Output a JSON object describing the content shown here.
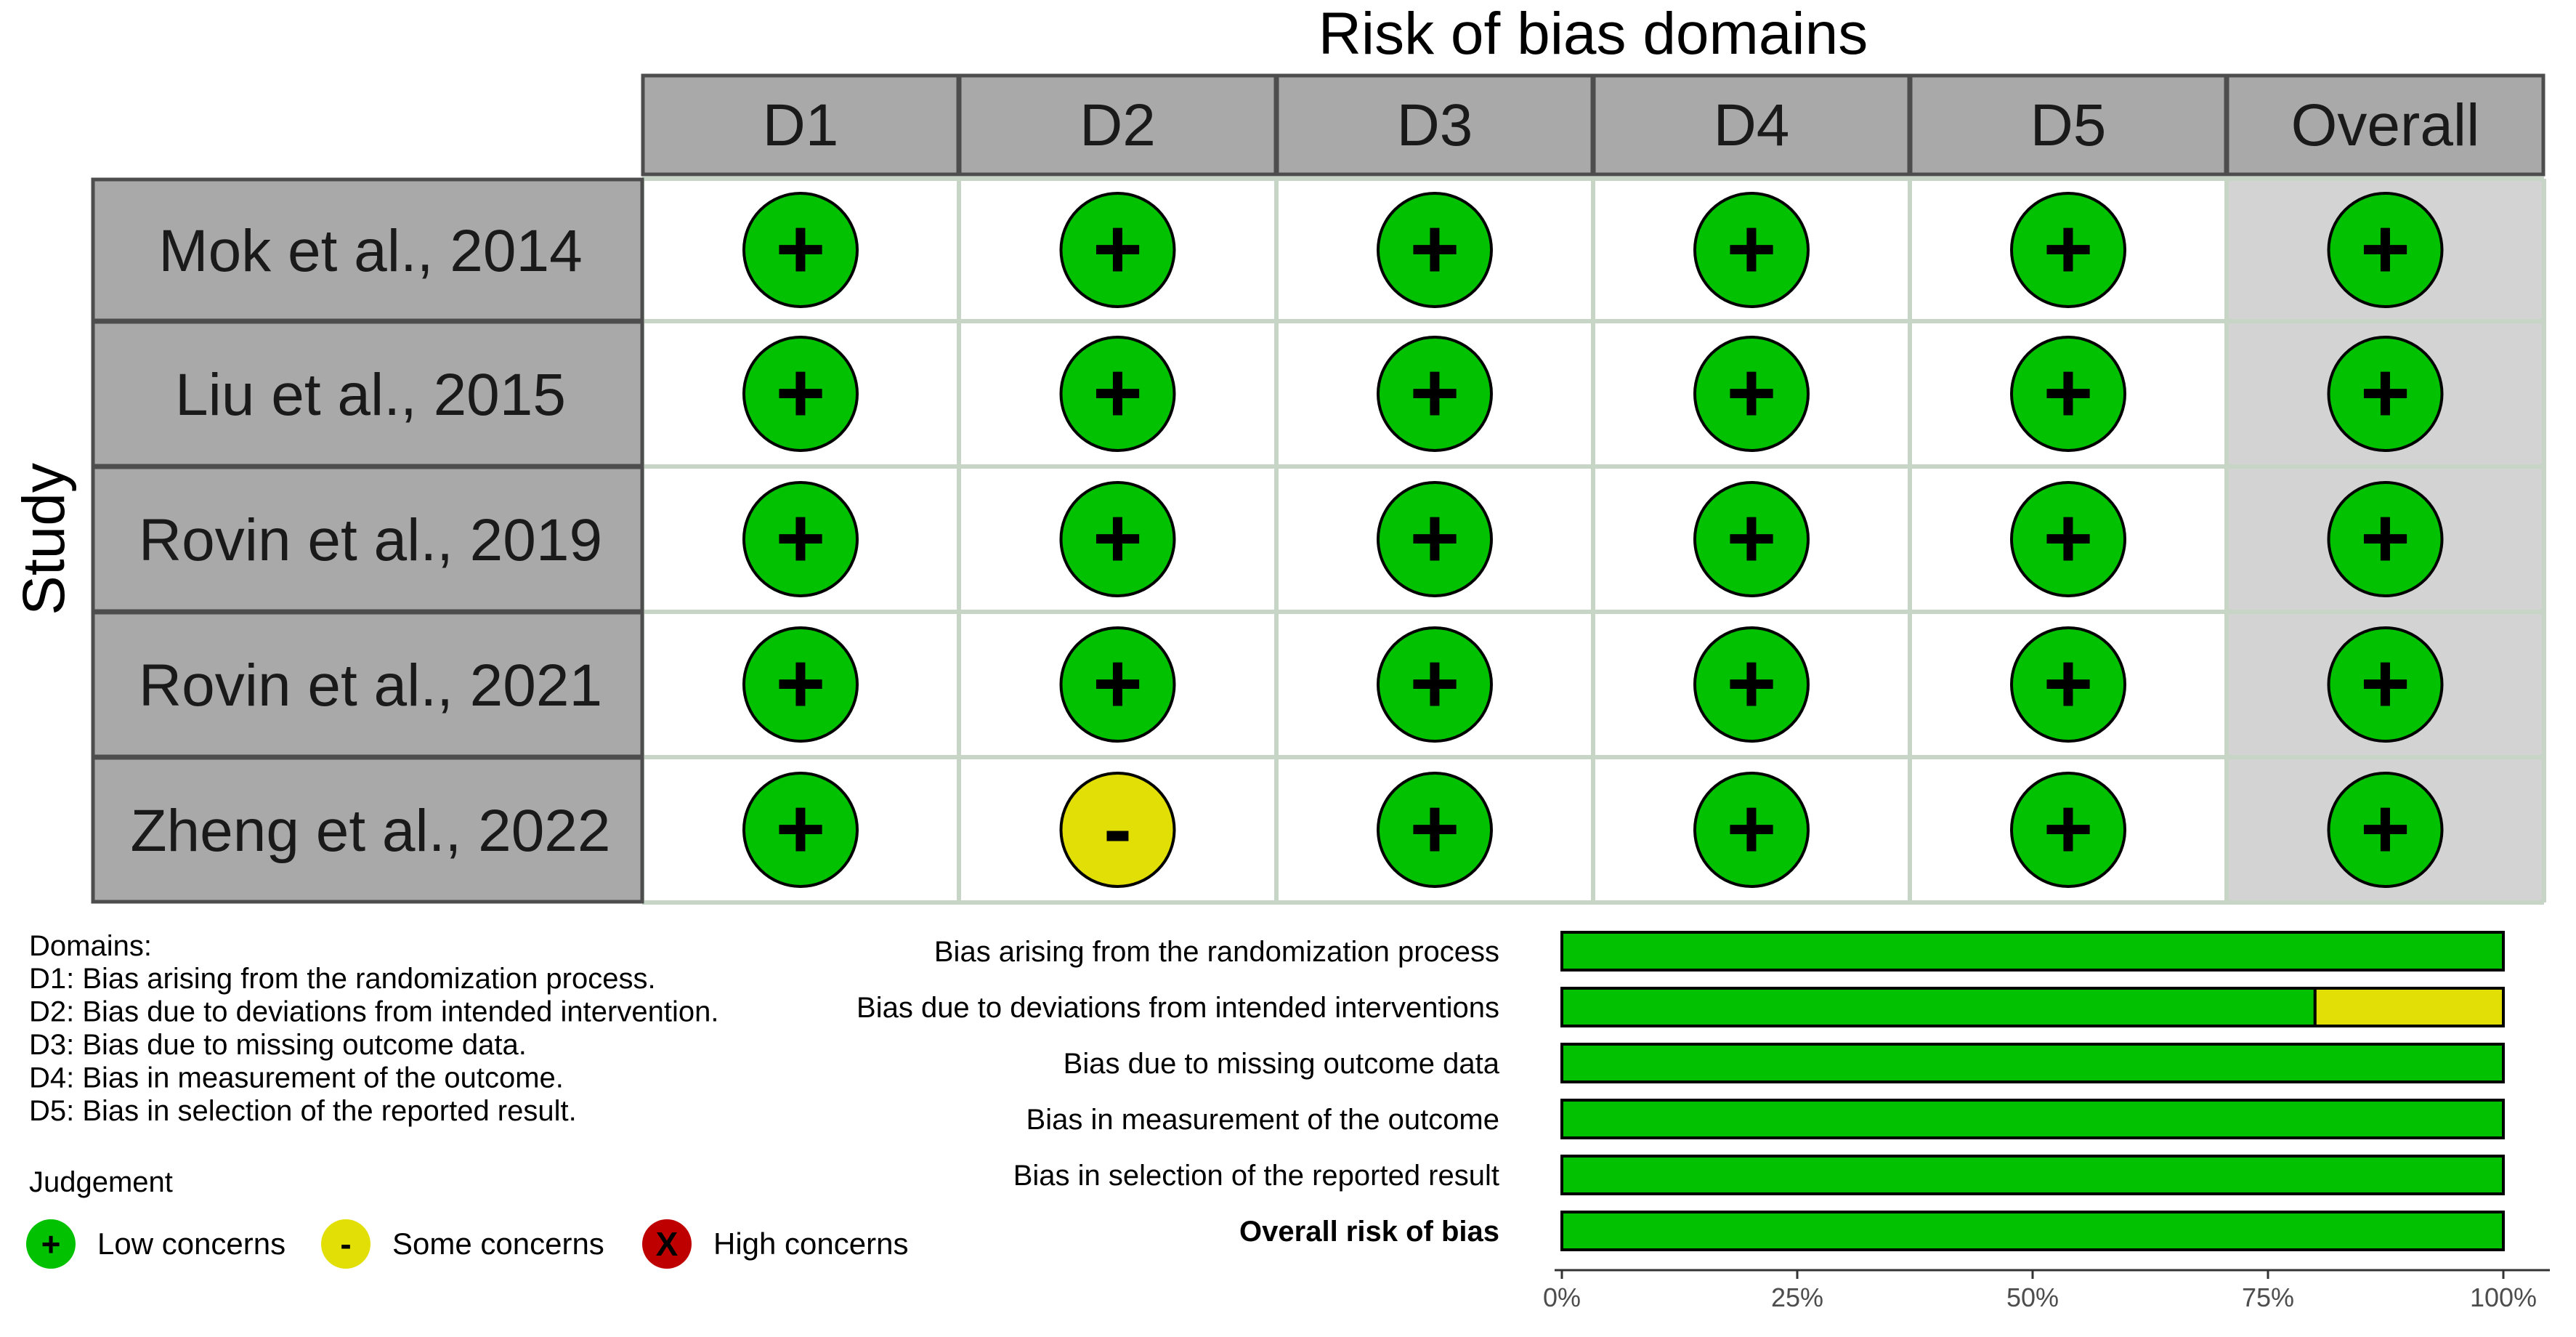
{
  "chart_data": [
    {
      "type": "table",
      "title": "Risk of bias domains",
      "ylabel": "Study",
      "columns": [
        "D1",
        "D2",
        "D3",
        "D4",
        "D5",
        "Overall"
      ],
      "studies": [
        {
          "name": "Mok et al., 2014",
          "judgements": [
            "Low",
            "Low",
            "Low",
            "Low",
            "Low",
            "Low"
          ]
        },
        {
          "name": "Liu et al., 2015",
          "judgements": [
            "Low",
            "Low",
            "Low",
            "Low",
            "Low",
            "Low"
          ]
        },
        {
          "name": "Rovin et al., 2019",
          "judgements": [
            "Low",
            "Low",
            "Low",
            "Low",
            "Low",
            "Low"
          ]
        },
        {
          "name": "Rovin et al., 2021",
          "judgements": [
            "Low",
            "Low",
            "Low",
            "Low",
            "Low",
            "Low"
          ]
        },
        {
          "name": "Zheng et al., 2022",
          "judgements": [
            "Low",
            "Some",
            "Low",
            "Low",
            "Low",
            "Low"
          ]
        }
      ],
      "domains_title": "Domains:",
      "domain_descriptions": [
        "D1: Bias arising from the randomization process.",
        "D2: Bias due to deviations from intended intervention.",
        "D3: Bias due to missing outcome data.",
        "D4: Bias in measurement of the outcome.",
        "D5: Bias in selection of the reported result."
      ],
      "judgement_title": "Judgement",
      "legend": [
        {
          "key": "Low",
          "symbol": "+",
          "label": "Low concerns",
          "color": "#02C100"
        },
        {
          "key": "Some",
          "symbol": "-",
          "label": "Some concerns",
          "color": "#E2DF07"
        },
        {
          "key": "High",
          "symbol": "X",
          "label": "High concerns",
          "color": "#BF0000"
        }
      ]
    },
    {
      "type": "bar",
      "orientation": "horizontal",
      "stacked": true,
      "categories": [
        "Bias arising from the randomization process",
        "Bias due to deviations from intended interventions",
        "Bias due to missing outcome data",
        "Bias in measurement of the outcome",
        "Bias in selection of the reported result",
        "Overall risk of bias"
      ],
      "bold_categories": [
        "Overall risk of bias"
      ],
      "series": [
        {
          "key": "Low",
          "color": "#02C100",
          "values": [
            100,
            80,
            100,
            100,
            100,
            100
          ]
        },
        {
          "key": "Some",
          "color": "#E2DF07",
          "values": [
            0,
            20,
            0,
            0,
            0,
            0
          ]
        },
        {
          "key": "High",
          "color": "#BF0000",
          "values": [
            0,
            0,
            0,
            0,
            0,
            0
          ]
        }
      ],
      "xlim": [
        0,
        100
      ],
      "xticks": [
        0,
        25,
        50,
        75,
        100
      ],
      "xtick_labels": [
        "0%",
        "25%",
        "50%",
        "75%",
        "100%"
      ]
    }
  ],
  "colors": {
    "header_fill": "#A9A9A9",
    "study_fill": "#A9A9A9",
    "overall_fill": "#D3D3D3",
    "grid_line": "#C6D5C6"
  }
}
